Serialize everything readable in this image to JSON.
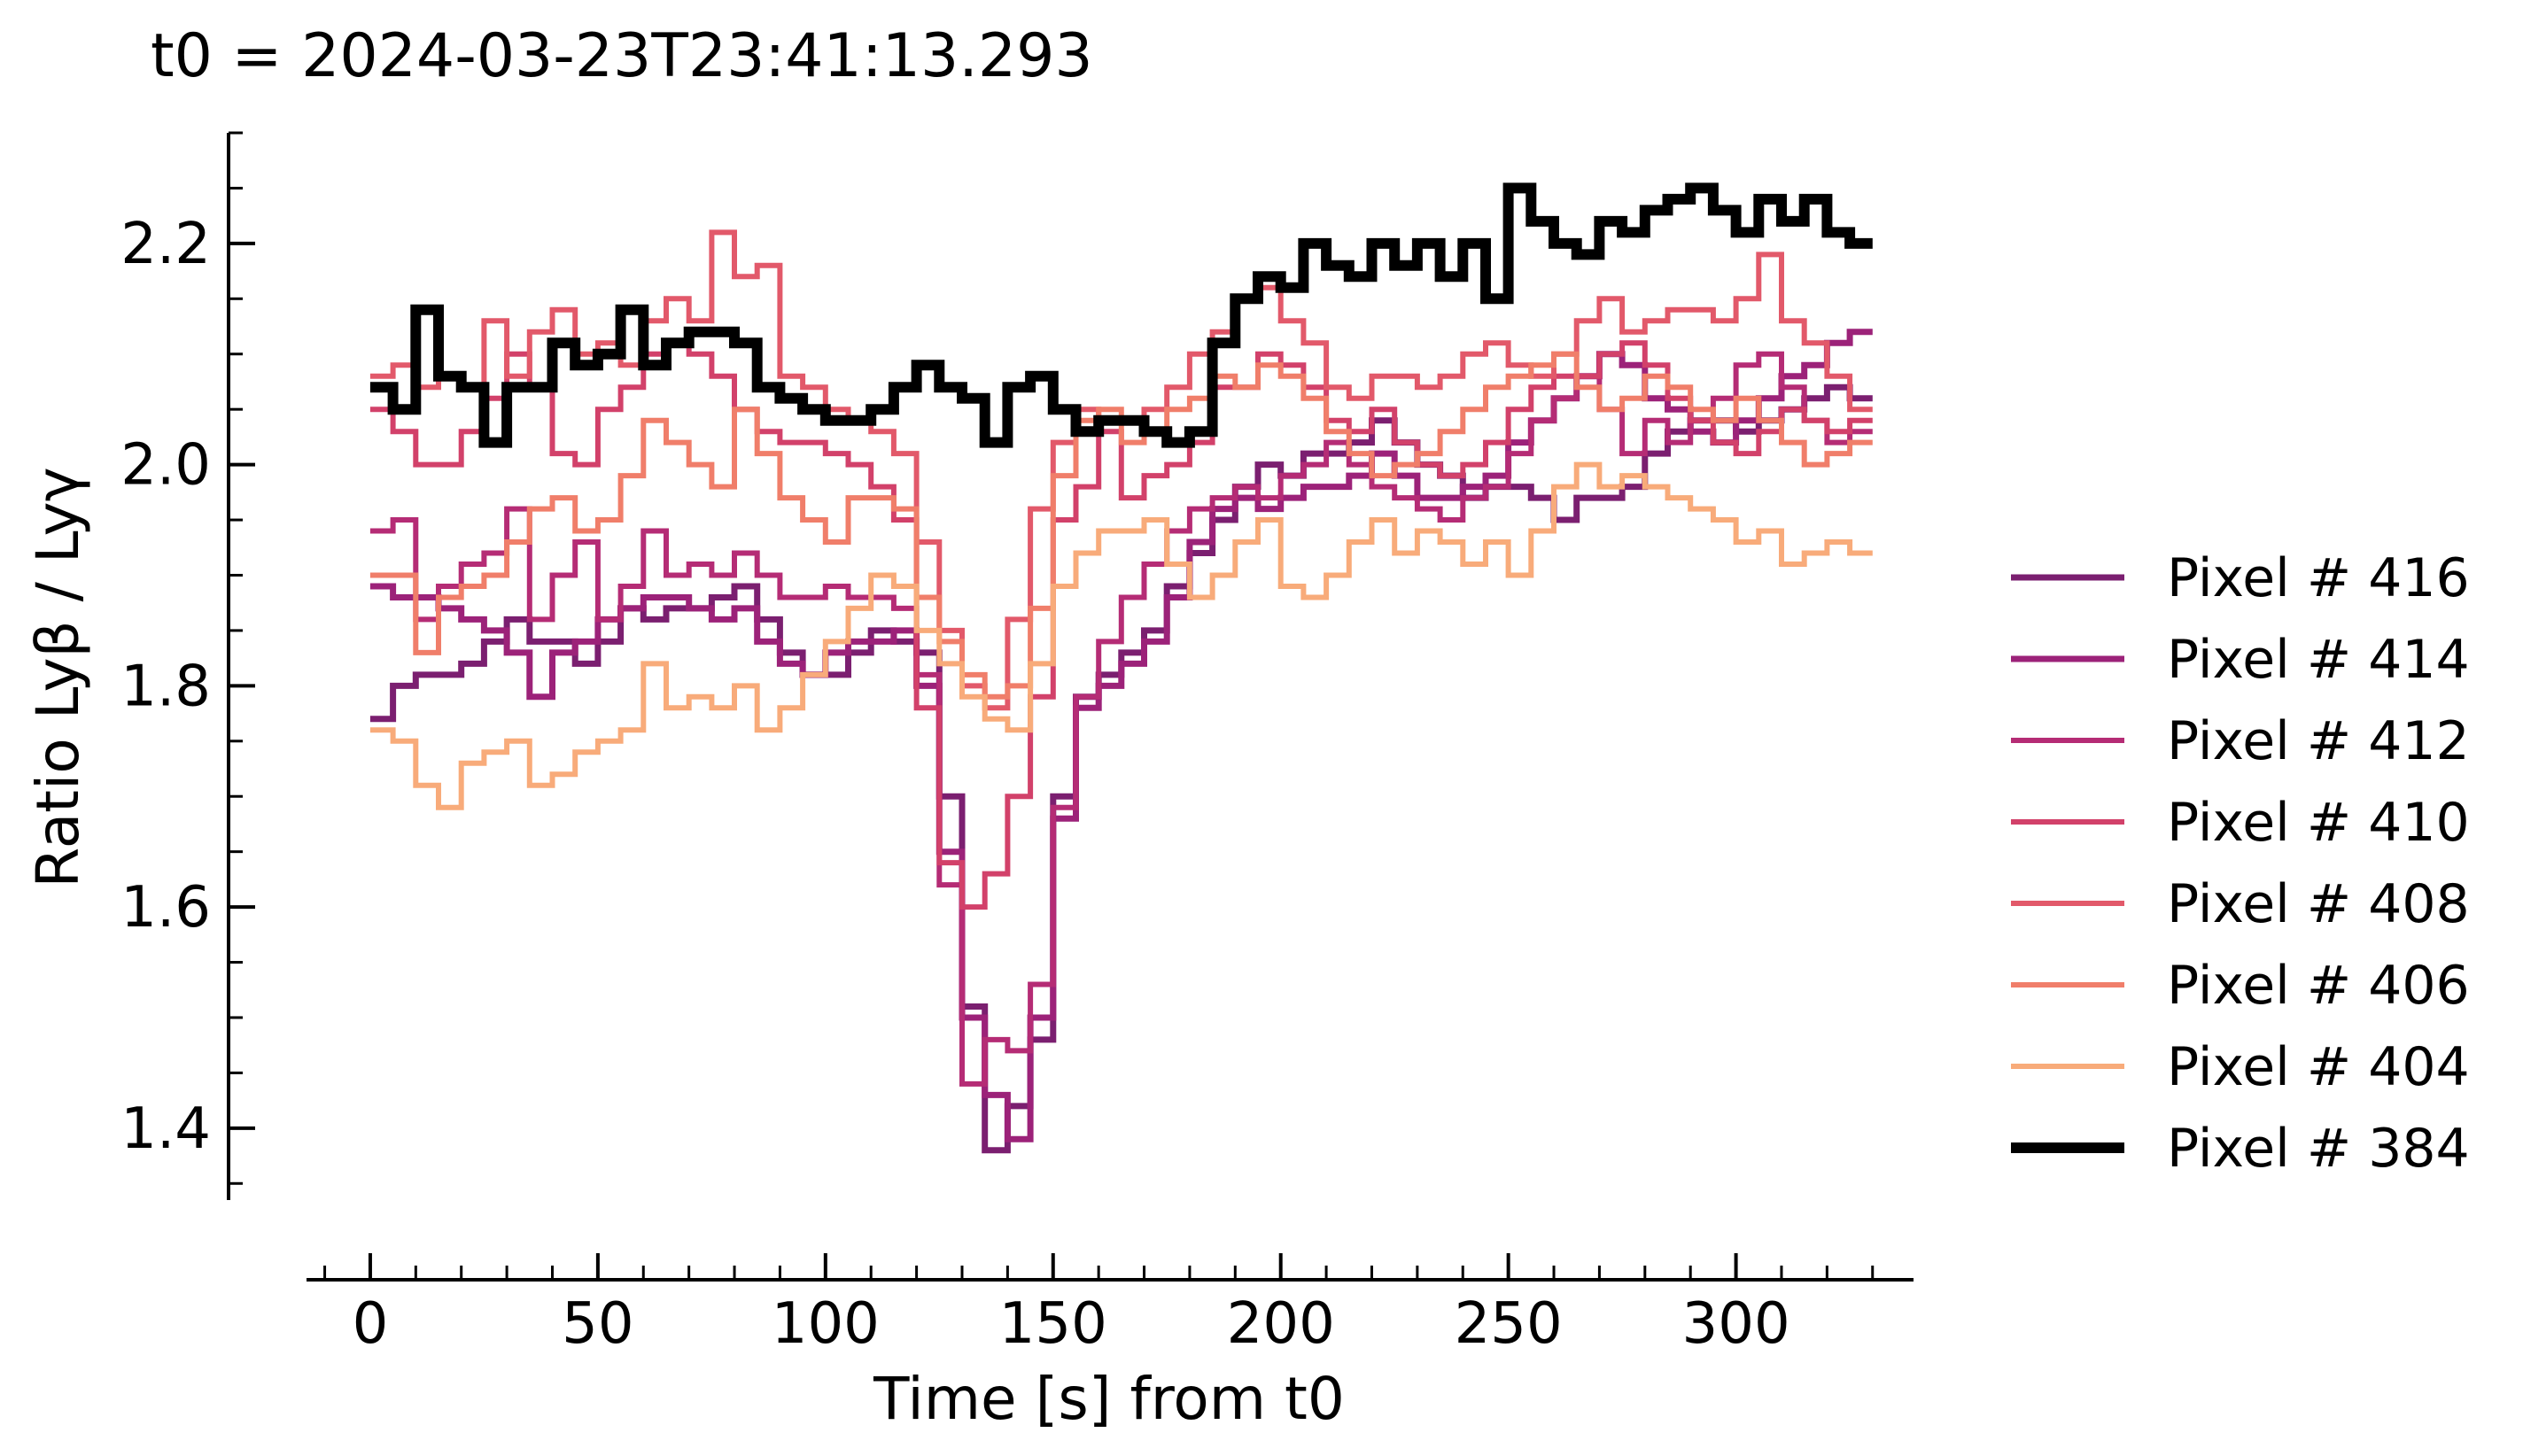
{
  "chart_data": {
    "type": "line",
    "title": "t0 = 2024-03-23T23:41:13.293",
    "xlabel": "Time [s] from t0",
    "ylabel": "Ratio Lyβ / Lyγ",
    "xlim": [
      -14,
      339
    ],
    "ylim": [
      1.335,
      2.3
    ],
    "xticks": [
      "0",
      "50",
      "100",
      "150",
      "200",
      "250",
      "300"
    ],
    "yticks": [
      "1.4",
      "1.6",
      "1.8",
      "2.0",
      "2.2"
    ],
    "step": 5,
    "grid": false,
    "legend_position": "right",
    "series": [
      {
        "name": "Pixel # 416",
        "color": "#7b1f70",
        "width": 7,
        "values": [
          1.77,
          1.8,
          1.81,
          1.81,
          1.82,
          1.84,
          1.86,
          1.84,
          1.84,
          1.82,
          1.84,
          1.87,
          1.86,
          1.87,
          1.87,
          1.88,
          1.89,
          1.86,
          1.83,
          1.81,
          1.81,
          1.83,
          1.85,
          1.84,
          1.83,
          1.7,
          1.51,
          1.38,
          1.42,
          1.48,
          1.7,
          1.79,
          1.81,
          1.83,
          1.85,
          1.89,
          1.92,
          1.95,
          1.98,
          2.0,
          1.99,
          2.01,
          2.01,
          2.02,
          2.04,
          2.02,
          2.0,
          1.99,
          1.97,
          1.98,
          1.98,
          1.97,
          1.95,
          1.97,
          1.97,
          1.98,
          2.01,
          2.03,
          2.04,
          2.04,
          2.03,
          2.04,
          2.05,
          2.06,
          2.07,
          2.06
        ]
      },
      {
        "name": "Pixel # 414",
        "color": "#9c2279",
        "width": 7,
        "values": [
          1.89,
          1.88,
          1.88,
          1.87,
          1.86,
          1.85,
          1.83,
          1.79,
          1.83,
          1.84,
          1.86,
          1.87,
          1.88,
          1.88,
          1.87,
          1.86,
          1.87,
          1.84,
          1.82,
          1.81,
          1.83,
          1.84,
          1.84,
          1.85,
          1.8,
          1.65,
          1.5,
          1.43,
          1.39,
          1.5,
          1.68,
          1.78,
          1.8,
          1.82,
          1.84,
          1.88,
          1.93,
          1.96,
          1.97,
          1.96,
          1.97,
          1.98,
          1.98,
          1.99,
          2.01,
          1.99,
          1.97,
          1.97,
          1.98,
          1.99,
          2.02,
          2.04,
          2.06,
          2.08,
          2.1,
          2.09,
          2.06,
          2.05,
          2.03,
          2.02,
          2.04,
          2.06,
          2.08,
          2.09,
          2.11,
          2.12
        ]
      },
      {
        "name": "Pixel # 412",
        "color": "#b52c75",
        "width": 6,
        "values": [
          1.94,
          1.95,
          1.86,
          1.89,
          1.91,
          1.92,
          1.96,
          1.86,
          1.9,
          1.93,
          1.86,
          1.89,
          1.94,
          1.9,
          1.91,
          1.9,
          1.92,
          1.9,
          1.88,
          1.88,
          1.89,
          1.88,
          1.88,
          1.87,
          1.81,
          1.62,
          1.44,
          1.48,
          1.47,
          1.53,
          1.69,
          1.79,
          1.84,
          1.88,
          1.91,
          1.94,
          1.96,
          1.97,
          1.98,
          1.97,
          1.99,
          2.0,
          2.02,
          2.0,
          1.98,
          1.97,
          1.96,
          1.95,
          1.97,
          1.98,
          2.01,
          2.04,
          2.06,
          2.08,
          2.05,
          2.01,
          2.04,
          2.02,
          2.04,
          2.06,
          2.09,
          2.1,
          2.07,
          2.04,
          2.02,
          2.03
        ]
      },
      {
        "name": "Pixel # 410",
        "color": "#d2416a",
        "width": 6,
        "values": [
          2.05,
          2.03,
          2.0,
          2.0,
          2.03,
          2.06,
          2.1,
          2.07,
          2.01,
          2.0,
          2.05,
          2.07,
          2.1,
          2.11,
          2.1,
          2.08,
          2.05,
          2.03,
          2.02,
          2.02,
          2.01,
          2.0,
          1.98,
          1.95,
          1.78,
          1.64,
          1.6,
          1.63,
          1.7,
          1.79,
          1.95,
          1.98,
          2.03,
          1.97,
          1.99,
          2.0,
          2.02,
          2.07,
          2.07,
          2.1,
          2.09,
          2.07,
          2.04,
          2.03,
          2.05,
          2.02,
          2.0,
          1.99,
          2.0,
          2.02,
          2.05,
          2.07,
          2.08,
          2.08,
          2.1,
          2.11,
          2.09,
          2.06,
          2.04,
          2.02,
          2.01,
          2.03,
          2.05,
          2.04,
          2.03,
          2.04
        ]
      },
      {
        "name": "Pixel # 408",
        "color": "#e2596a",
        "width": 6,
        "values": [
          2.08,
          2.09,
          2.07,
          2.08,
          2.07,
          2.13,
          2.08,
          2.12,
          2.14,
          2.1,
          2.11,
          2.09,
          2.13,
          2.15,
          2.13,
          2.21,
          2.17,
          2.18,
          2.08,
          2.07,
          2.05,
          2.04,
          2.03,
          2.01,
          1.93,
          1.85,
          1.8,
          1.78,
          1.86,
          1.96,
          2.02,
          2.05,
          2.04,
          2.04,
          2.05,
          2.07,
          2.1,
          2.12,
          2.15,
          2.16,
          2.13,
          2.11,
          2.07,
          2.06,
          2.08,
          2.08,
          2.07,
          2.08,
          2.1,
          2.11,
          2.09,
          2.08,
          2.1,
          2.13,
          2.15,
          2.12,
          2.13,
          2.14,
          2.14,
          2.13,
          2.15,
          2.19,
          2.13,
          2.11,
          2.08,
          2.05
        ]
      },
      {
        "name": "Pixel # 406",
        "color": "#f07e6a",
        "width": 6,
        "values": [
          1.9,
          1.9,
          1.83,
          1.88,
          1.89,
          1.9,
          1.93,
          1.96,
          1.97,
          1.94,
          1.95,
          1.99,
          2.04,
          2.02,
          2.0,
          1.98,
          2.05,
          2.01,
          1.97,
          1.95,
          1.93,
          1.97,
          1.97,
          1.96,
          1.88,
          1.84,
          1.81,
          1.79,
          1.8,
          1.87,
          1.99,
          2.04,
          2.05,
          2.02,
          2.03,
          2.05,
          2.06,
          2.08,
          2.07,
          2.09,
          2.08,
          2.06,
          2.03,
          2.01,
          1.99,
          2.0,
          2.01,
          2.03,
          2.05,
          2.07,
          2.08,
          2.09,
          2.1,
          2.07,
          2.05,
          2.06,
          2.08,
          2.07,
          2.05,
          2.04,
          2.06,
          2.04,
          2.02,
          2.0,
          2.01,
          2.02
        ]
      },
      {
        "name": "Pixel # 404",
        "color": "#f8ab7a",
        "width": 6,
        "values": [
          1.76,
          1.75,
          1.71,
          1.69,
          1.73,
          1.74,
          1.75,
          1.71,
          1.72,
          1.74,
          1.75,
          1.76,
          1.82,
          1.78,
          1.79,
          1.78,
          1.8,
          1.76,
          1.78,
          1.81,
          1.84,
          1.87,
          1.9,
          1.89,
          1.85,
          1.82,
          1.79,
          1.77,
          1.76,
          1.82,
          1.89,
          1.92,
          1.94,
          1.94,
          1.95,
          1.91,
          1.88,
          1.9,
          1.93,
          1.95,
          1.89,
          1.88,
          1.9,
          1.93,
          1.95,
          1.92,
          1.94,
          1.93,
          1.91,
          1.93,
          1.9,
          1.94,
          1.98,
          2.0,
          1.98,
          1.99,
          1.98,
          1.97,
          1.96,
          1.95,
          1.93,
          1.94,
          1.91,
          1.92,
          1.93,
          1.92
        ]
      },
      {
        "name": "Pixel # 384",
        "color": "#000000",
        "width": 12,
        "values": [
          2.07,
          2.05,
          2.14,
          2.08,
          2.07,
          2.02,
          2.07,
          2.07,
          2.11,
          2.09,
          2.1,
          2.14,
          2.09,
          2.11,
          2.12,
          2.12,
          2.11,
          2.07,
          2.06,
          2.05,
          2.04,
          2.04,
          2.05,
          2.07,
          2.09,
          2.07,
          2.06,
          2.02,
          2.07,
          2.08,
          2.05,
          2.03,
          2.04,
          2.04,
          2.03,
          2.02,
          2.03,
          2.11,
          2.15,
          2.17,
          2.16,
          2.2,
          2.18,
          2.17,
          2.2,
          2.18,
          2.2,
          2.17,
          2.2,
          2.15,
          2.25,
          2.22,
          2.2,
          2.19,
          2.22,
          2.21,
          2.23,
          2.24,
          2.25,
          2.23,
          2.21,
          2.24,
          2.22,
          2.24,
          2.21,
          2.2
        ]
      }
    ]
  }
}
